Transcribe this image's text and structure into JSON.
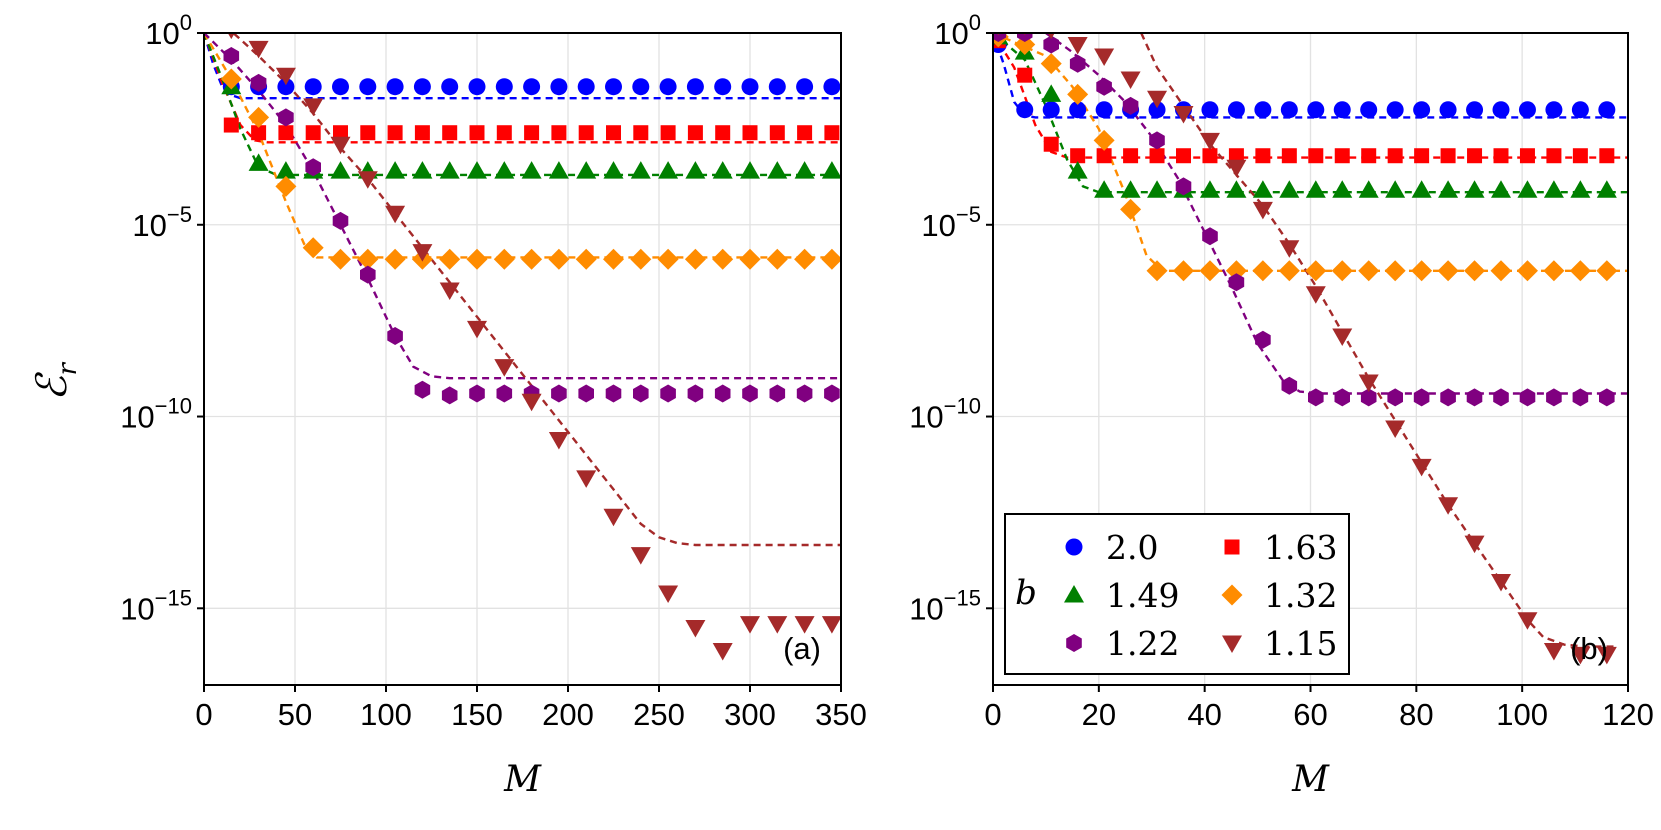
{
  "figure": {
    "ylabel_symbol": "ℰ",
    "ylabel_sub": "r",
    "legend": {
      "title": "b"
    }
  },
  "chart_data": [
    {
      "type": "scatter",
      "panel_label": "(a)",
      "xlabel": "M",
      "ylabel": "ℰ_r",
      "y_scale": "log",
      "xlim": [
        0,
        350
      ],
      "ylim_exp": [
        -17,
        0
      ],
      "x_ticks": [
        0,
        50,
        100,
        150,
        200,
        250,
        300,
        350
      ],
      "y_tick_exps": [
        0,
        -5,
        -10,
        -15
      ],
      "grid": true,
      "series": [
        {
          "name": "2.0",
          "color": "#0000ff",
          "marker": "circle",
          "x": [
            15,
            30,
            45,
            60,
            75,
            90,
            105,
            120,
            135,
            150,
            165,
            180,
            195,
            210,
            225,
            240,
            255,
            270,
            285,
            300,
            315,
            330,
            345
          ],
          "log10_y": [
            -1.4,
            -1.4,
            -1.4,
            -1.4,
            -1.4,
            -1.4,
            -1.4,
            -1.4,
            -1.4,
            -1.4,
            -1.4,
            -1.4,
            -1.4,
            -1.4,
            -1.4,
            -1.4,
            -1.4,
            -1.4,
            -1.4,
            -1.4,
            -1.4,
            -1.4,
            -1.4
          ],
          "fit_x": [
            0,
            5,
            10,
            15,
            20,
            350
          ],
          "fit_log10_y": [
            0,
            -0.8,
            -1.4,
            -1.62,
            -1.7,
            -1.7
          ]
        },
        {
          "name": "1.63",
          "color": "#ff0000",
          "marker": "square",
          "x": [
            15,
            30,
            45,
            60,
            75,
            90,
            105,
            120,
            135,
            150,
            165,
            180,
            195,
            210,
            225,
            240,
            255,
            270,
            285,
            300,
            315,
            330,
            345
          ],
          "log10_y": [
            -2.4,
            -2.6,
            -2.6,
            -2.6,
            -2.6,
            -2.6,
            -2.6,
            -2.6,
            -2.6,
            -2.6,
            -2.6,
            -2.6,
            -2.6,
            -2.6,
            -2.6,
            -2.6,
            -2.6,
            -2.6,
            -2.6,
            -2.6,
            -2.6,
            -2.6,
            -2.6
          ],
          "fit_x": [
            0,
            10,
            20,
            28,
            35,
            350
          ],
          "fit_log10_y": [
            0,
            -1.3,
            -2.4,
            -2.8,
            -2.85,
            -2.85
          ]
        },
        {
          "name": "1.49",
          "color": "#008000",
          "marker": "triangle-up",
          "x": [
            15,
            30,
            45,
            60,
            75,
            90,
            105,
            120,
            135,
            150,
            165,
            180,
            195,
            210,
            225,
            240,
            255,
            270,
            285,
            300,
            315,
            330,
            345
          ],
          "log10_y": [
            -1.4,
            -3.4,
            -3.6,
            -3.6,
            -3.6,
            -3.6,
            -3.6,
            -3.6,
            -3.6,
            -3.6,
            -3.6,
            -3.6,
            -3.6,
            -3.6,
            -3.6,
            -3.6,
            -3.6,
            -3.6,
            -3.6,
            -3.6,
            -3.6,
            -3.6,
            -3.6
          ],
          "fit_x": [
            0,
            10,
            20,
            30,
            40,
            350
          ],
          "fit_log10_y": [
            0,
            -1.2,
            -2.5,
            -3.5,
            -3.7,
            -3.7
          ]
        },
        {
          "name": "1.32",
          "color": "#ff8c00",
          "marker": "diamond",
          "x": [
            15,
            30,
            45,
            60,
            75,
            90,
            105,
            120,
            135,
            150,
            165,
            180,
            195,
            210,
            225,
            240,
            255,
            270,
            285,
            300,
            315,
            330,
            345
          ],
          "log10_y": [
            -1.2,
            -2.2,
            -4.0,
            -5.6,
            -5.9,
            -5.9,
            -5.9,
            -5.9,
            -5.9,
            -5.9,
            -5.9,
            -5.9,
            -5.9,
            -5.9,
            -5.9,
            -5.9,
            -5.9,
            -5.9,
            -5.9,
            -5.9,
            -5.9,
            -5.9,
            -5.9
          ],
          "fit_x": [
            0,
            15,
            30,
            45,
            55,
            62,
            350
          ],
          "fit_log10_y": [
            0,
            -1.2,
            -2.6,
            -4.4,
            -5.5,
            -5.85,
            -5.85
          ]
        },
        {
          "name": "1.22",
          "color": "#800080",
          "marker": "hexagon",
          "x": [
            15,
            30,
            45,
            60,
            75,
            90,
            105,
            120,
            135,
            150,
            165,
            180,
            195,
            210,
            225,
            240,
            255,
            270,
            285,
            300,
            315,
            330,
            345
          ],
          "log10_y": [
            -0.6,
            -1.3,
            -2.2,
            -3.5,
            -4.9,
            -6.3,
            -7.9,
            -9.3,
            -9.45,
            -9.4,
            -9.4,
            -9.4,
            -9.4,
            -9.4,
            -9.4,
            -9.4,
            -9.4,
            -9.4,
            -9.4,
            -9.4,
            -9.4,
            -9.4,
            -9.4
          ],
          "fit_x": [
            0,
            15,
            30,
            45,
            60,
            75,
            90,
            105,
            115,
            125,
            135,
            350
          ],
          "fit_log10_y": [
            0,
            -0.7,
            -1.5,
            -2.4,
            -3.6,
            -5.0,
            -6.4,
            -7.9,
            -8.7,
            -8.95,
            -9.0,
            -9.0
          ]
        },
        {
          "name": "1.15",
          "color": "#a52a2a",
          "marker": "triangle-down",
          "x": [
            15,
            30,
            45,
            60,
            75,
            90,
            105,
            120,
            135,
            150,
            165,
            180,
            195,
            210,
            225,
            240,
            255,
            270,
            285,
            300,
            315,
            330,
            345
          ],
          "log10_y": [
            0.1,
            -0.4,
            -1.1,
            -1.9,
            -2.9,
            -3.8,
            -4.7,
            -5.7,
            -6.7,
            -7.7,
            -8.7,
            -9.6,
            -10.6,
            -11.6,
            -12.6,
            -13.6,
            -14.6,
            -15.5,
            -16.1,
            -15.4,
            -15.4,
            -15.4,
            -15.4
          ],
          "fit_x": [
            0,
            15,
            30,
            45,
            60,
            75,
            90,
            105,
            120,
            135,
            150,
            165,
            180,
            195,
            210,
            225,
            240,
            250,
            260,
            270,
            350
          ],
          "fit_log10_y": [
            0.5,
            0.05,
            -0.6,
            -1.3,
            -2.1,
            -3.0,
            -3.8,
            -4.7,
            -5.6,
            -6.5,
            -7.4,
            -8.3,
            -9.2,
            -10.1,
            -11.0,
            -11.9,
            -12.8,
            -13.15,
            -13.3,
            -13.35,
            -13.35
          ]
        }
      ]
    },
    {
      "type": "scatter",
      "panel_label": "(b)",
      "xlabel": "M",
      "ylabel": "ℰ_r",
      "y_scale": "log",
      "xlim": [
        0,
        120
      ],
      "ylim_exp": [
        -17,
        0
      ],
      "x_ticks": [
        0,
        20,
        40,
        60,
        80,
        100,
        120
      ],
      "y_tick_exps": [
        0,
        -5,
        -10,
        -15
      ],
      "grid": true,
      "series": [
        {
          "name": "2.0",
          "color": "#0000ff",
          "marker": "circle",
          "x": [
            1,
            6,
            11,
            16,
            21,
            26,
            31,
            36,
            41,
            46,
            51,
            56,
            61,
            66,
            71,
            76,
            81,
            86,
            91,
            96,
            101,
            106,
            111,
            116
          ],
          "log10_y": [
            -0.3,
            -2.0,
            -2.0,
            -2.0,
            -2.0,
            -2.0,
            -2.0,
            -2.0,
            -2.0,
            -2.0,
            -2.0,
            -2.0,
            -2.0,
            -2.0,
            -2.0,
            -2.0,
            -2.0,
            -2.0,
            -2.0,
            -2.0,
            -2.0,
            -2.0,
            -2.0,
            -2.0
          ],
          "fit_x": [
            0,
            2,
            4,
            6,
            8,
            120
          ],
          "fit_log10_y": [
            0,
            -0.8,
            -1.8,
            -2.15,
            -2.2,
            -2.2
          ]
        },
        {
          "name": "1.63",
          "color": "#ff0000",
          "marker": "square",
          "x": [
            1,
            6,
            11,
            16,
            21,
            26,
            31,
            36,
            41,
            46,
            51,
            56,
            61,
            66,
            71,
            76,
            81,
            86,
            91,
            96,
            101,
            106,
            111,
            116
          ],
          "log10_y": [
            -0.2,
            -1.1,
            -2.9,
            -3.2,
            -3.2,
            -3.2,
            -3.2,
            -3.2,
            -3.2,
            -3.2,
            -3.2,
            -3.2,
            -3.2,
            -3.2,
            -3.2,
            -3.2,
            -3.2,
            -3.2,
            -3.2,
            -3.2,
            -3.2,
            -3.2,
            -3.2,
            -3.2
          ],
          "fit_x": [
            0,
            4,
            8,
            11,
            14,
            120
          ],
          "fit_log10_y": [
            0,
            -0.9,
            -2.4,
            -3.1,
            -3.25,
            -3.25
          ]
        },
        {
          "name": "1.49",
          "color": "#008000",
          "marker": "triangle-up",
          "x": [
            1,
            6,
            11,
            16,
            21,
            26,
            31,
            36,
            41,
            46,
            51,
            56,
            61,
            66,
            71,
            76,
            81,
            86,
            91,
            96,
            101,
            106,
            111,
            116
          ],
          "log10_y": [
            -0.1,
            -0.5,
            -1.6,
            -3.6,
            -4.1,
            -4.1,
            -4.1,
            -4.1,
            -4.1,
            -4.1,
            -4.1,
            -4.1,
            -4.1,
            -4.1,
            -4.1,
            -4.1,
            -4.1,
            -4.1,
            -4.1,
            -4.1,
            -4.1,
            -4.1,
            -4.1,
            -4.1
          ],
          "fit_x": [
            0,
            6,
            10,
            14,
            17,
            20,
            120
          ],
          "fit_log10_y": [
            0,
            -0.7,
            -1.9,
            -3.3,
            -4.0,
            -4.15,
            -4.15
          ]
        },
        {
          "name": "1.32",
          "color": "#ff8c00",
          "marker": "diamond",
          "x": [
            1,
            6,
            11,
            16,
            21,
            26,
            31,
            36,
            41,
            46,
            51,
            56,
            61,
            66,
            71,
            76,
            81,
            86,
            91,
            96,
            101,
            106,
            111,
            116
          ],
          "log10_y": [
            -0.1,
            -0.3,
            -0.8,
            -1.6,
            -2.8,
            -4.6,
            -6.2,
            -6.2,
            -6.2,
            -6.2,
            -6.2,
            -6.2,
            -6.2,
            -6.2,
            -6.2,
            -6.2,
            -6.2,
            -6.2,
            -6.2,
            -6.2,
            -6.2,
            -6.2,
            -6.2,
            -6.2
          ],
          "fit_x": [
            0,
            10,
            15,
            20,
            25,
            29,
            32,
            120
          ],
          "fit_log10_y": [
            0,
            -0.6,
            -1.4,
            -2.5,
            -4.2,
            -5.8,
            -6.2,
            -6.2
          ]
        },
        {
          "name": "1.22",
          "color": "#800080",
          "marker": "hexagon",
          "x": [
            1,
            6,
            11,
            16,
            21,
            26,
            31,
            36,
            41,
            46,
            51,
            56,
            61,
            66,
            71,
            76,
            81,
            86,
            91,
            96,
            101,
            106,
            111,
            116
          ],
          "log10_y": [
            0,
            0,
            -0.3,
            -0.8,
            -1.4,
            -1.9,
            -2.8,
            -4.0,
            -5.3,
            -6.5,
            -8.0,
            -9.2,
            -9.5,
            -9.5,
            -9.5,
            -9.5,
            -9.5,
            -9.5,
            -9.5,
            -9.5,
            -9.5,
            -9.5,
            -9.5,
            -9.5
          ],
          "fit_x": [
            10,
            15,
            20,
            25,
            30,
            35,
            40,
            45,
            50,
            55,
            58,
            62,
            120
          ],
          "fit_log10_y": [
            0,
            -0.5,
            -1.1,
            -1.8,
            -2.7,
            -3.8,
            -5.2,
            -6.6,
            -8.1,
            -9.1,
            -9.35,
            -9.4,
            -9.4
          ]
        },
        {
          "name": "1.15",
          "color": "#a52a2a",
          "marker": "triangle-down",
          "x": [
            1,
            6,
            11,
            16,
            21,
            26,
            31,
            36,
            41,
            46,
            51,
            56,
            61,
            66,
            71,
            76,
            81,
            86,
            91,
            96,
            101,
            106,
            111,
            116
          ],
          "log10_y": [
            0.2,
            0.2,
            0.1,
            -0.3,
            -0.6,
            -1.2,
            -1.7,
            -2.1,
            -2.8,
            -3.5,
            -4.6,
            -5.6,
            -6.8,
            -7.9,
            -9.1,
            -10.3,
            -11.3,
            -12.3,
            -13.3,
            -14.3,
            -15.3,
            -16.1,
            -16.2,
            -16.2
          ],
          "fit_x": [
            28,
            31,
            36,
            41,
            46,
            51,
            56,
            61,
            66,
            71,
            76,
            81,
            86,
            91,
            96,
            101,
            104,
            108,
            112,
            118
          ],
          "fit_log10_y": [
            0,
            -0.9,
            -1.9,
            -2.9,
            -3.7,
            -4.5,
            -5.5,
            -6.6,
            -7.8,
            -9.0,
            -10.1,
            -11.2,
            -12.3,
            -13.3,
            -14.3,
            -15.3,
            -15.75,
            -15.95,
            -16.0,
            -16.0
          ]
        }
      ]
    }
  ]
}
